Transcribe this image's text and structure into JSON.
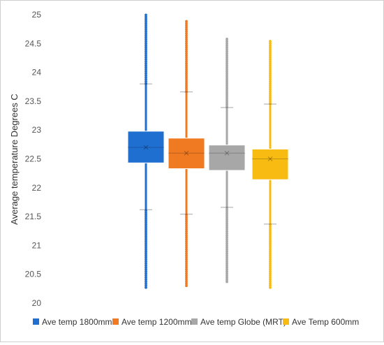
{
  "chart_data": {
    "type": "box",
    "title": "",
    "xlabel": "",
    "ylabel": "Average temperature Degrees C",
    "ylim": [
      20,
      25
    ],
    "yticks": [
      20,
      20.5,
      21,
      21.5,
      22,
      22.5,
      23,
      23.5,
      24,
      24.5,
      25
    ],
    "grid": false,
    "legend_position": "bottom",
    "series": [
      {
        "name": "Ave temp 1800mm",
        "color": "#1f6fd1",
        "q1": 22.43,
        "median": 22.7,
        "q3": 22.98,
        "whisker_low": 21.62,
        "whisker_high": 23.8,
        "min": 20.27,
        "max": 25.0,
        "mean": 22.7
      },
      {
        "name": "Ave temp 1200mm",
        "color": "#f07a22",
        "q1": 22.33,
        "median": 22.6,
        "q3": 22.86,
        "whisker_low": 21.54,
        "whisker_high": 23.66,
        "min": 20.3,
        "max": 24.9,
        "mean": 22.6
      },
      {
        "name": "Ave temp Globe (MRT)",
        "color": "#a7a7a7",
        "q1": 22.3,
        "median": 22.6,
        "q3": 22.74,
        "whisker_low": 21.66,
        "whisker_high": 23.39,
        "min": 20.37,
        "max": 24.6,
        "mean": 22.6
      },
      {
        "name": "Ave Temp 600mm",
        "color": "#f8bb12",
        "q1": 22.14,
        "median": 22.5,
        "q3": 22.67,
        "whisker_low": 21.37,
        "whisker_high": 23.45,
        "min": 20.27,
        "max": 24.55,
        "mean": 22.5
      }
    ]
  }
}
